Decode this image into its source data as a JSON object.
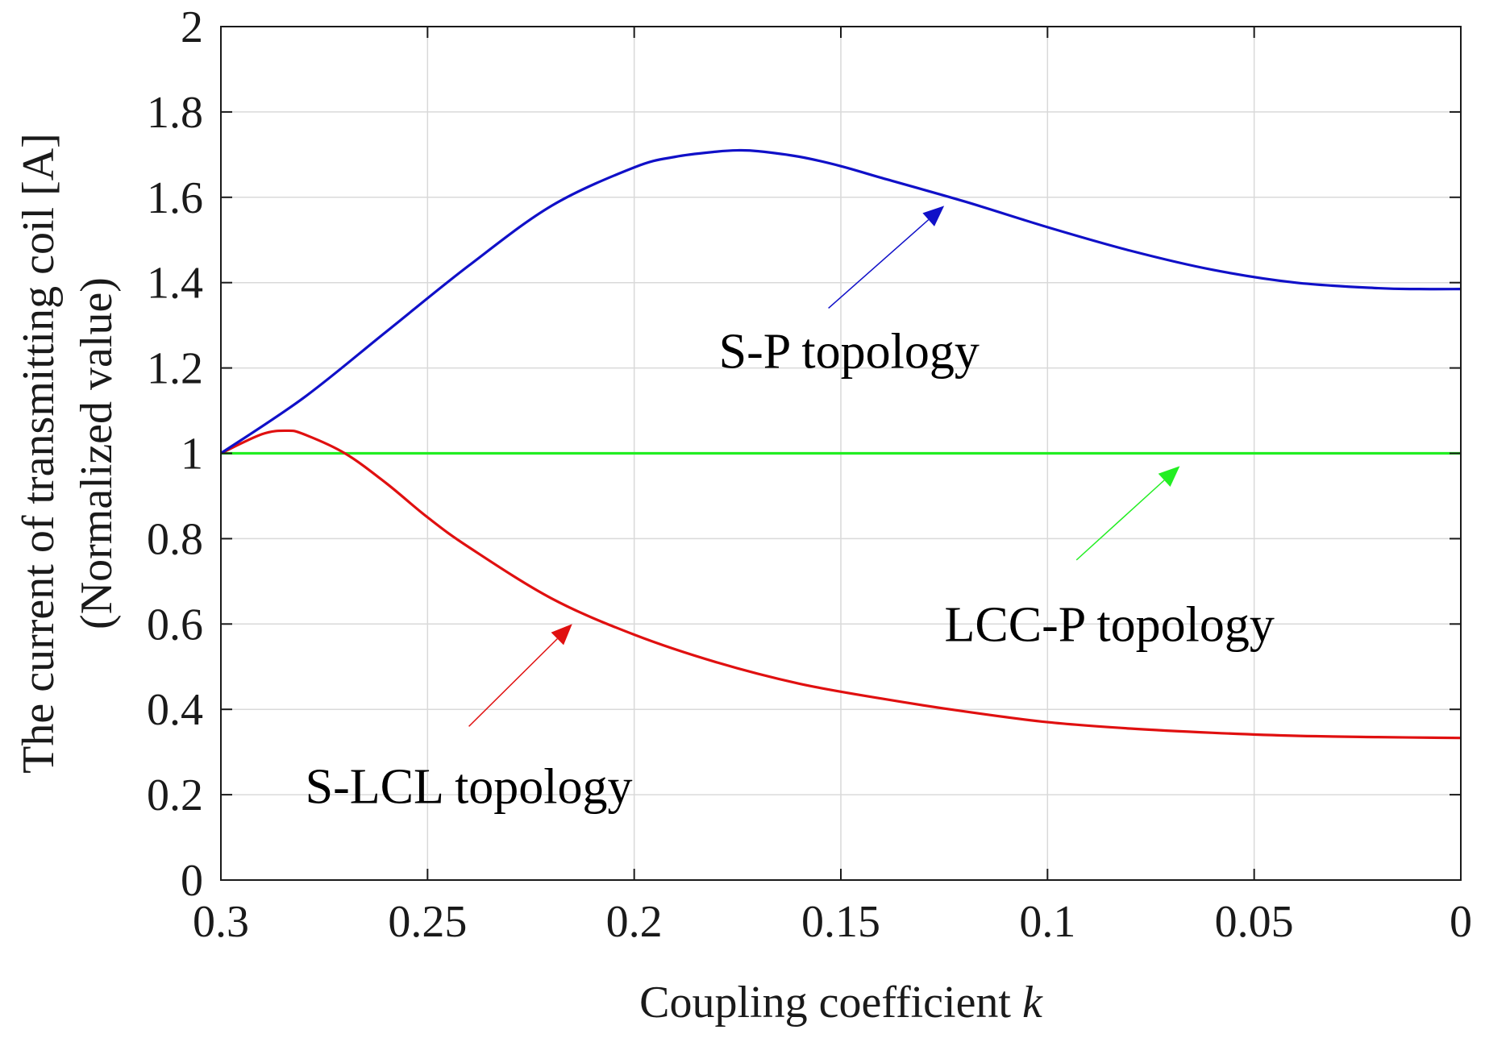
{
  "chart_data": {
    "type": "line",
    "title": "",
    "xlabel": "Coupling coefficient",
    "xlabel_var": "k",
    "ylabel_line1": "The current of transmitting coil [A]",
    "ylabel_line2": "(Normalized value)",
    "xlim": [
      0.3,
      0
    ],
    "ylim": [
      0,
      2
    ],
    "x_reversed": true,
    "grid": true,
    "x_ticks": [
      0.3,
      0.25,
      0.2,
      0.15,
      0.1,
      0.05,
      0
    ],
    "x_tick_labels": [
      "0.3",
      "0.25",
      "0.2",
      "0.15",
      "0.1",
      "0.05",
      "0"
    ],
    "y_ticks": [
      0,
      0.2,
      0.4,
      0.6,
      0.8,
      1,
      1.2,
      1.4,
      1.6,
      1.8,
      2
    ],
    "y_tick_labels": [
      "0",
      "0.2",
      "0.4",
      "0.6",
      "0.8",
      "1",
      "1.2",
      "1.4",
      "1.6",
      "1.8",
      "2"
    ],
    "series": [
      {
        "name": "S-P topology",
        "color": "#1010c8",
        "x": [
          0.3,
          0.28,
          0.26,
          0.24,
          0.22,
          0.2,
          0.19,
          0.18,
          0.175,
          0.17,
          0.16,
          0.15,
          0.14,
          0.12,
          0.1,
          0.08,
          0.06,
          0.04,
          0.02,
          0.01,
          0
        ],
        "y": [
          1.0,
          1.13,
          1.285,
          1.44,
          1.58,
          1.67,
          1.695,
          1.707,
          1.71,
          1.708,
          1.695,
          1.673,
          1.645,
          1.59,
          1.53,
          1.475,
          1.43,
          1.4,
          1.387,
          1.385,
          1.385
        ]
      },
      {
        "name": "LCC-P topology",
        "color": "#22ee22",
        "x": [
          0.3,
          0
        ],
        "y": [
          1.0,
          1.0
        ]
      },
      {
        "name": "S-LCL topology",
        "color": "#e01010",
        "x": [
          0.3,
          0.29,
          0.284,
          0.28,
          0.27,
          0.26,
          0.25,
          0.24,
          0.22,
          0.2,
          0.18,
          0.16,
          0.14,
          0.12,
          0.1,
          0.08,
          0.06,
          0.04,
          0.02,
          0
        ],
        "y": [
          1.0,
          1.045,
          1.053,
          1.045,
          1.0,
          0.93,
          0.85,
          0.78,
          0.66,
          0.575,
          0.51,
          0.46,
          0.425,
          0.395,
          0.37,
          0.355,
          0.345,
          0.338,
          0.335,
          0.333
        ]
      }
    ],
    "annotations": [
      {
        "text": "S-P topology",
        "color": "#1010c8",
        "text_anchor_data": [
          0.148,
          1.2
        ],
        "arrow_from_data": [
          0.153,
          1.34
        ],
        "arrow_to_data": [
          0.125,
          1.58
        ]
      },
      {
        "text": "LCC-P topology",
        "color": "#22ee22",
        "text_anchor_data": [
          0.085,
          0.56
        ],
        "arrow_from_data": [
          0.093,
          0.75
        ],
        "arrow_to_data": [
          0.068,
          0.97
        ]
      },
      {
        "text": "S-LCL topology",
        "color": "#e01010",
        "text_anchor_data": [
          0.24,
          0.18
        ],
        "arrow_from_data": [
          0.24,
          0.36
        ],
        "arrow_to_data": [
          0.215,
          0.6
        ]
      }
    ]
  }
}
